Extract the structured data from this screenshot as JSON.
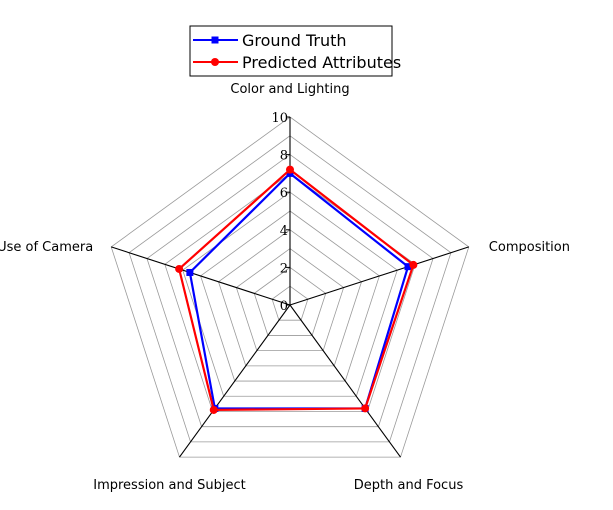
{
  "chart_data": {
    "type": "radar",
    "axes": [
      "Color and Lighting",
      "Composition",
      "Depth and Focus",
      "Impression and Subject",
      "Use of Camera"
    ],
    "range": [
      0,
      10
    ],
    "ticks": [
      0,
      2,
      4,
      6,
      8,
      10
    ],
    "tick_labels": [
      "0",
      "2",
      "4",
      "6",
      "8",
      "10"
    ],
    "grid": true,
    "legend_position": "top",
    "series": [
      {
        "name": "Ground Truth",
        "values": [
          7.0,
          6.6,
          6.8,
          6.8,
          5.6
        ],
        "color": "#0000ff",
        "marker": "square"
      },
      {
        "name": "Predicted Attributes",
        "values": [
          7.2,
          6.9,
          6.8,
          6.9,
          6.2
        ],
        "color": "#ff0000",
        "marker": "circle"
      }
    ]
  }
}
